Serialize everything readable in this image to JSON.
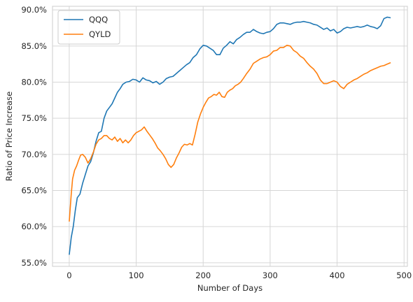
{
  "chart_data": {
    "type": "line",
    "xlabel": "Number of Days",
    "ylabel": "Ratio of Price Increase",
    "xlim": [
      -25,
      505
    ],
    "ylim": [
      0.545,
      0.905
    ],
    "x_ticks": [
      0,
      100,
      200,
      300,
      400,
      500
    ],
    "x_tick_labels": [
      "0",
      "100",
      "200",
      "300",
      "400",
      "500"
    ],
    "y_ticks": [
      0.55,
      0.6,
      0.65,
      0.7,
      0.75,
      0.8,
      0.85,
      0.9
    ],
    "y_tick_labels": [
      "55.0%",
      "60.0%",
      "65.0%",
      "70.0%",
      "75.0%",
      "80.0%",
      "85.0%",
      "90.0%"
    ],
    "grid": true,
    "legend_position": "top-left",
    "series": [
      {
        "name": "QQQ",
        "color": "#1f77b4",
        "points": [
          [
            0,
            0.561
          ],
          [
            3,
            0.585
          ],
          [
            6,
            0.6
          ],
          [
            9,
            0.622
          ],
          [
            12,
            0.64
          ],
          [
            16,
            0.645
          ],
          [
            20,
            0.66
          ],
          [
            24,
            0.672
          ],
          [
            28,
            0.684
          ],
          [
            32,
            0.69
          ],
          [
            36,
            0.702
          ],
          [
            40,
            0.718
          ],
          [
            44,
            0.73
          ],
          [
            48,
            0.732
          ],
          [
            52,
            0.75
          ],
          [
            56,
            0.76
          ],
          [
            60,
            0.765
          ],
          [
            64,
            0.77
          ],
          [
            68,
            0.778
          ],
          [
            72,
            0.786
          ],
          [
            76,
            0.791
          ],
          [
            80,
            0.797
          ],
          [
            85,
            0.8
          ],
          [
            90,
            0.801
          ],
          [
            95,
            0.804
          ],
          [
            100,
            0.803
          ],
          [
            105,
            0.8
          ],
          [
            110,
            0.806
          ],
          [
            115,
            0.803
          ],
          [
            120,
            0.802
          ],
          [
            125,
            0.799
          ],
          [
            130,
            0.801
          ],
          [
            135,
            0.797
          ],
          [
            140,
            0.8
          ],
          [
            145,
            0.805
          ],
          [
            150,
            0.807
          ],
          [
            155,
            0.808
          ],
          [
            160,
            0.812
          ],
          [
            165,
            0.816
          ],
          [
            170,
            0.82
          ],
          [
            175,
            0.824
          ],
          [
            180,
            0.827
          ],
          [
            185,
            0.834
          ],
          [
            190,
            0.838
          ],
          [
            195,
            0.846
          ],
          [
            200,
            0.851
          ],
          [
            205,
            0.85
          ],
          [
            210,
            0.847
          ],
          [
            215,
            0.844
          ],
          [
            220,
            0.838
          ],
          [
            225,
            0.838
          ],
          [
            230,
            0.847
          ],
          [
            235,
            0.851
          ],
          [
            240,
            0.856
          ],
          [
            245,
            0.853
          ],
          [
            250,
            0.859
          ],
          [
            255,
            0.862
          ],
          [
            260,
            0.866
          ],
          [
            265,
            0.869
          ],
          [
            270,
            0.869
          ],
          [
            275,
            0.873
          ],
          [
            280,
            0.87
          ],
          [
            285,
            0.868
          ],
          [
            290,
            0.867
          ],
          [
            295,
            0.869
          ],
          [
            300,
            0.87
          ],
          [
            305,
            0.874
          ],
          [
            310,
            0.88
          ],
          [
            315,
            0.882
          ],
          [
            320,
            0.882
          ],
          [
            325,
            0.881
          ],
          [
            330,
            0.88
          ],
          [
            335,
            0.882
          ],
          [
            340,
            0.883
          ],
          [
            345,
            0.883
          ],
          [
            350,
            0.884
          ],
          [
            355,
            0.883
          ],
          [
            360,
            0.882
          ],
          [
            365,
            0.88
          ],
          [
            370,
            0.879
          ],
          [
            375,
            0.876
          ],
          [
            380,
            0.873
          ],
          [
            385,
            0.875
          ],
          [
            390,
            0.871
          ],
          [
            395,
            0.873
          ],
          [
            400,
            0.868
          ],
          [
            405,
            0.87
          ],
          [
            410,
            0.874
          ],
          [
            415,
            0.876
          ],
          [
            420,
            0.875
          ],
          [
            425,
            0.876
          ],
          [
            430,
            0.877
          ],
          [
            435,
            0.876
          ],
          [
            440,
            0.877
          ],
          [
            445,
            0.879
          ],
          [
            450,
            0.877
          ],
          [
            455,
            0.876
          ],
          [
            460,
            0.874
          ],
          [
            465,
            0.878
          ],
          [
            470,
            0.888
          ],
          [
            475,
            0.89
          ],
          [
            480,
            0.889
          ]
        ]
      },
      {
        "name": "QYLD",
        "color": "#ff7f0e",
        "points": [
          [
            0,
            0.607
          ],
          [
            3,
            0.645
          ],
          [
            5,
            0.666
          ],
          [
            8,
            0.678
          ],
          [
            11,
            0.684
          ],
          [
            14,
            0.692
          ],
          [
            17,
            0.699
          ],
          [
            20,
            0.7
          ],
          [
            24,
            0.696
          ],
          [
            28,
            0.688
          ],
          [
            32,
            0.694
          ],
          [
            36,
            0.703
          ],
          [
            40,
            0.714
          ],
          [
            44,
            0.72
          ],
          [
            48,
            0.722
          ],
          [
            52,
            0.726
          ],
          [
            56,
            0.726
          ],
          [
            60,
            0.722
          ],
          [
            64,
            0.72
          ],
          [
            68,
            0.724
          ],
          [
            72,
            0.718
          ],
          [
            76,
            0.722
          ],
          [
            80,
            0.716
          ],
          [
            84,
            0.72
          ],
          [
            88,
            0.716
          ],
          [
            92,
            0.72
          ],
          [
            96,
            0.726
          ],
          [
            100,
            0.73
          ],
          [
            104,
            0.732
          ],
          [
            108,
            0.734
          ],
          [
            112,
            0.738
          ],
          [
            116,
            0.732
          ],
          [
            120,
            0.727
          ],
          [
            124,
            0.722
          ],
          [
            128,
            0.716
          ],
          [
            132,
            0.709
          ],
          [
            136,
            0.705
          ],
          [
            140,
            0.7
          ],
          [
            144,
            0.694
          ],
          [
            148,
            0.686
          ],
          [
            152,
            0.682
          ],
          [
            156,
            0.686
          ],
          [
            160,
            0.695
          ],
          [
            164,
            0.702
          ],
          [
            168,
            0.71
          ],
          [
            172,
            0.714
          ],
          [
            176,
            0.713
          ],
          [
            180,
            0.715
          ],
          [
            184,
            0.713
          ],
          [
            188,
            0.728
          ],
          [
            192,
            0.745
          ],
          [
            196,
            0.756
          ],
          [
            200,
            0.765
          ],
          [
            204,
            0.772
          ],
          [
            208,
            0.778
          ],
          [
            212,
            0.78
          ],
          [
            216,
            0.783
          ],
          [
            220,
            0.782
          ],
          [
            224,
            0.786
          ],
          [
            228,
            0.78
          ],
          [
            232,
            0.779
          ],
          [
            236,
            0.786
          ],
          [
            240,
            0.789
          ],
          [
            244,
            0.791
          ],
          [
            248,
            0.795
          ],
          [
            252,
            0.797
          ],
          [
            256,
            0.8
          ],
          [
            260,
            0.805
          ],
          [
            265,
            0.812
          ],
          [
            270,
            0.818
          ],
          [
            275,
            0.826
          ],
          [
            280,
            0.829
          ],
          [
            285,
            0.832
          ],
          [
            290,
            0.834
          ],
          [
            295,
            0.835
          ],
          [
            300,
            0.838
          ],
          [
            305,
            0.843
          ],
          [
            310,
            0.844
          ],
          [
            315,
            0.848
          ],
          [
            320,
            0.848
          ],
          [
            325,
            0.851
          ],
          [
            330,
            0.85
          ],
          [
            335,
            0.844
          ],
          [
            340,
            0.841
          ],
          [
            345,
            0.836
          ],
          [
            350,
            0.833
          ],
          [
            355,
            0.827
          ],
          [
            360,
            0.822
          ],
          [
            365,
            0.818
          ],
          [
            370,
            0.812
          ],
          [
            375,
            0.803
          ],
          [
            380,
            0.798
          ],
          [
            385,
            0.798
          ],
          [
            390,
            0.8
          ],
          [
            395,
            0.802
          ],
          [
            400,
            0.8
          ],
          [
            405,
            0.794
          ],
          [
            410,
            0.791
          ],
          [
            415,
            0.797
          ],
          [
            420,
            0.8
          ],
          [
            425,
            0.803
          ],
          [
            430,
            0.805
          ],
          [
            435,
            0.808
          ],
          [
            440,
            0.811
          ],
          [
            445,
            0.813
          ],
          [
            450,
            0.816
          ],
          [
            455,
            0.818
          ],
          [
            460,
            0.82
          ],
          [
            465,
            0.822
          ],
          [
            470,
            0.823
          ],
          [
            475,
            0.825
          ],
          [
            480,
            0.827
          ]
        ]
      }
    ]
  }
}
